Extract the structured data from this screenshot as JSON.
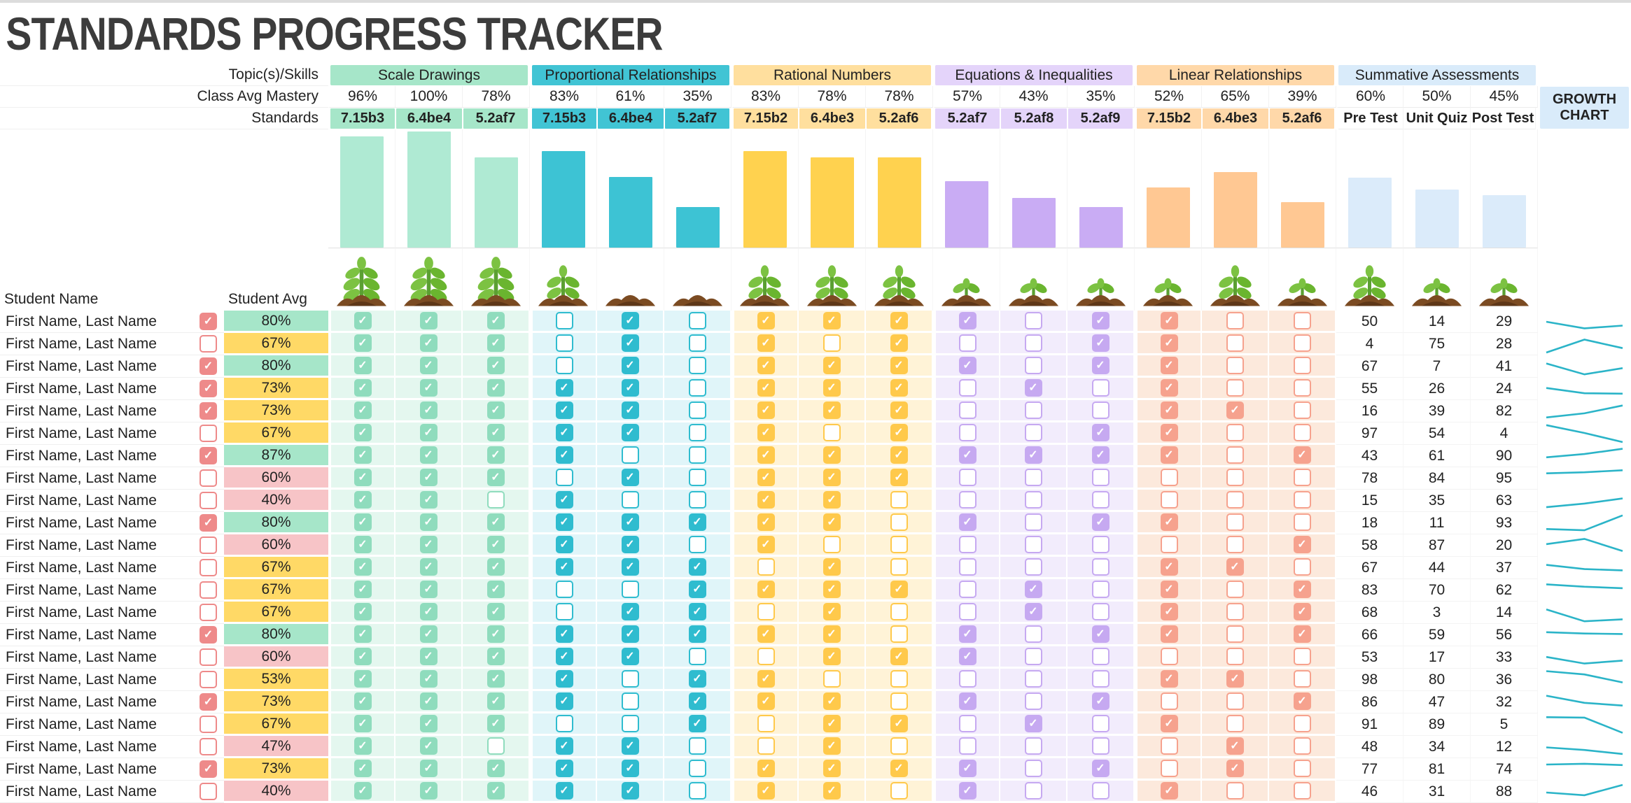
{
  "title": "STANDARDS PROGRESS TRACKER",
  "header": {
    "topics_label": "Topic(s)/Skills",
    "mastery_label": "Class Avg Mastery",
    "standards_label": "Standards",
    "growth_label": "GROWTH CHART"
  },
  "table": {
    "student_name_label": "Student Name",
    "student_avg_label": "Student Avg"
  },
  "palette": {
    "title_color": "#3C3C3C",
    "flag_check": "#EE8A8A",
    "sparkline": "#2BB4C8",
    "avg_green": "#A6E6C9",
    "avg_yellow": "#FFD966",
    "avg_pink": "#F7C4C7"
  },
  "groups": [
    {
      "label": "Scale Drawings",
      "header_bg": "#A6E6C9",
      "bar_color": "#AFEAD3",
      "check_color": "#8FDCBD",
      "tint": "#E4F7EF",
      "scores_group": false,
      "columns": [
        {
          "standard": "7.15b3",
          "mastery": 96,
          "plant": "large"
        },
        {
          "standard": "6.4be4",
          "mastery": 100,
          "plant": "large"
        },
        {
          "standard": "5.2af7",
          "mastery": 78,
          "plant": "large"
        }
      ]
    },
    {
      "label": "Proportional Relationships",
      "header_bg": "#41C4D4",
      "bar_color": "#3DC3D4",
      "check_color": "#2FBCCF",
      "tint": "#E0F5F9",
      "scores_group": false,
      "columns": [
        {
          "standard": "7.15b3",
          "mastery": 83,
          "plant": "medium"
        },
        {
          "standard": "6.4be4",
          "mastery": 61,
          "plant": "dirt"
        },
        {
          "standard": "5.2af7",
          "mastery": 35,
          "plant": "dirt"
        }
      ]
    },
    {
      "label": "Rational Numbers",
      "header_bg": "#FFDF9E",
      "bar_color": "#FFD24F",
      "check_color": "#FFC94B",
      "tint": "#FFF3D7",
      "scores_group": false,
      "columns": [
        {
          "standard": "7.15b2",
          "mastery": 83,
          "plant": "medium"
        },
        {
          "standard": "6.4be3",
          "mastery": 78,
          "plant": "medium"
        },
        {
          "standard": "5.2af6",
          "mastery": 78,
          "plant": "medium"
        }
      ]
    },
    {
      "label": "Equations & Inequalities",
      "header_bg": "#E4D4FA",
      "bar_color": "#C9ACF4",
      "check_color": "#C6A9F1",
      "tint": "#F2ECFC",
      "scores_group": false,
      "columns": [
        {
          "standard": "5.2af7",
          "mastery": 57,
          "plant": "sprout"
        },
        {
          "standard": "5.2af8",
          "mastery": 43,
          "plant": "sprout"
        },
        {
          "standard": "5.2af9",
          "mastery": 35,
          "plant": "sprout"
        }
      ]
    },
    {
      "label": "Linear Relationships",
      "header_bg": "#FFD8A9",
      "bar_color": "#FFC893",
      "check_color": "#F6A28E",
      "tint": "#FCE9DC",
      "scores_group": false,
      "columns": [
        {
          "standard": "7.15b2",
          "mastery": 52,
          "plant": "sprout"
        },
        {
          "standard": "6.4be3",
          "mastery": 65,
          "plant": "medium"
        },
        {
          "standard": "5.2af6",
          "mastery": 39,
          "plant": "sprout"
        }
      ]
    },
    {
      "label": "Summative Assessments",
      "header_bg": "#D9EBFA",
      "bar_color": "#DBEBFA",
      "check_color": "#9EC9EF",
      "tint": "#FFFFFF",
      "scores_group": true,
      "columns": [
        {
          "standard": "Pre Test",
          "mastery": 60,
          "plant": "medium"
        },
        {
          "standard": "Unit Quiz",
          "mastery": 50,
          "plant": "sprout"
        },
        {
          "standard": "Post Test",
          "mastery": 45,
          "plant": "sprout"
        }
      ]
    }
  ],
  "students": [
    {
      "name": "First Name, Last Name",
      "flag": true,
      "avg": "80%",
      "avg_color": "avg_green",
      "checks": [
        1,
        1,
        1,
        0,
        1,
        0,
        1,
        1,
        1,
        1,
        0,
        1,
        1,
        0,
        0
      ],
      "scores": [
        50,
        14,
        29
      ]
    },
    {
      "name": "First Name, Last Name",
      "flag": false,
      "avg": "67%",
      "avg_color": "avg_yellow",
      "checks": [
        1,
        1,
        1,
        0,
        1,
        0,
        1,
        0,
        1,
        0,
        0,
        1,
        1,
        0,
        0
      ],
      "scores": [
        4,
        75,
        28
      ]
    },
    {
      "name": "First Name, Last Name",
      "flag": true,
      "avg": "80%",
      "avg_color": "avg_green",
      "checks": [
        1,
        1,
        1,
        0,
        1,
        0,
        1,
        1,
        1,
        1,
        0,
        1,
        1,
        0,
        0
      ],
      "scores": [
        67,
        7,
        41
      ]
    },
    {
      "name": "First Name, Last Name",
      "flag": true,
      "avg": "73%",
      "avg_color": "avg_yellow",
      "checks": [
        1,
        1,
        1,
        1,
        1,
        0,
        1,
        1,
        1,
        0,
        1,
        0,
        1,
        0,
        0
      ],
      "scores": [
        55,
        26,
        24
      ]
    },
    {
      "name": "First Name, Last Name",
      "flag": true,
      "avg": "73%",
      "avg_color": "avg_yellow",
      "checks": [
        1,
        1,
        1,
        1,
        1,
        0,
        1,
        1,
        1,
        0,
        0,
        0,
        1,
        1,
        0
      ],
      "scores": [
        16,
        39,
        82
      ]
    },
    {
      "name": "First Name, Last Name",
      "flag": false,
      "avg": "67%",
      "avg_color": "avg_yellow",
      "checks": [
        1,
        1,
        1,
        1,
        1,
        0,
        1,
        0,
        1,
        0,
        0,
        1,
        1,
        0,
        0
      ],
      "scores": [
        97,
        54,
        4
      ]
    },
    {
      "name": "First Name, Last Name",
      "flag": true,
      "avg": "87%",
      "avg_color": "avg_green",
      "checks": [
        1,
        1,
        1,
        1,
        0,
        0,
        1,
        1,
        1,
        1,
        1,
        1,
        1,
        0,
        1
      ],
      "scores": [
        43,
        61,
        90
      ]
    },
    {
      "name": "First Name, Last Name",
      "flag": false,
      "avg": "60%",
      "avg_color": "avg_pink",
      "checks": [
        1,
        1,
        1,
        0,
        1,
        0,
        1,
        1,
        1,
        0,
        0,
        0,
        0,
        0,
        0
      ],
      "scores": [
        78,
        84,
        95
      ]
    },
    {
      "name": "First Name, Last Name",
      "flag": false,
      "avg": "40%",
      "avg_color": "avg_pink",
      "checks": [
        1,
        1,
        0,
        1,
        0,
        0,
        1,
        1,
        0,
        0,
        0,
        0,
        0,
        0,
        0
      ],
      "scores": [
        15,
        35,
        63
      ]
    },
    {
      "name": "First Name, Last Name",
      "flag": true,
      "avg": "80%",
      "avg_color": "avg_green",
      "checks": [
        1,
        1,
        1,
        1,
        1,
        1,
        1,
        1,
        0,
        1,
        0,
        1,
        1,
        0,
        0
      ],
      "scores": [
        18,
        11,
        93
      ]
    },
    {
      "name": "First Name, Last Name",
      "flag": false,
      "avg": "60%",
      "avg_color": "avg_pink",
      "checks": [
        1,
        1,
        1,
        1,
        1,
        0,
        1,
        0,
        0,
        0,
        0,
        0,
        0,
        0,
        1
      ],
      "scores": [
        58,
        87,
        20
      ]
    },
    {
      "name": "First Name, Last Name",
      "flag": false,
      "avg": "67%",
      "avg_color": "avg_yellow",
      "checks": [
        1,
        1,
        1,
        1,
        1,
        1,
        0,
        1,
        0,
        0,
        0,
        0,
        1,
        1,
        0
      ],
      "scores": [
        67,
        44,
        37
      ]
    },
    {
      "name": "First Name, Last Name",
      "flag": false,
      "avg": "67%",
      "avg_color": "avg_yellow",
      "checks": [
        1,
        1,
        1,
        0,
        0,
        1,
        1,
        1,
        1,
        0,
        1,
        0,
        1,
        0,
        1
      ],
      "scores": [
        83,
        70,
        62
      ]
    },
    {
      "name": "First Name, Last Name",
      "flag": false,
      "avg": "67%",
      "avg_color": "avg_yellow",
      "checks": [
        1,
        1,
        1,
        0,
        1,
        1,
        0,
        1,
        0,
        0,
        1,
        0,
        1,
        0,
        1
      ],
      "scores": [
        68,
        3,
        14
      ]
    },
    {
      "name": "First Name, Last Name",
      "flag": true,
      "avg": "80%",
      "avg_color": "avg_green",
      "checks": [
        1,
        1,
        1,
        1,
        1,
        1,
        1,
        1,
        0,
        1,
        0,
        1,
        1,
        0,
        1
      ],
      "scores": [
        66,
        59,
        56
      ]
    },
    {
      "name": "First Name, Last Name",
      "flag": false,
      "avg": "60%",
      "avg_color": "avg_pink",
      "checks": [
        1,
        1,
        1,
        1,
        1,
        0,
        0,
        1,
        1,
        1,
        0,
        0,
        0,
        0,
        0
      ],
      "scores": [
        53,
        17,
        33
      ]
    },
    {
      "name": "First Name, Last Name",
      "flag": false,
      "avg": "53%",
      "avg_color": "avg_yellow",
      "checks": [
        1,
        1,
        1,
        1,
        0,
        1,
        1,
        0,
        0,
        0,
        0,
        0,
        1,
        1,
        0
      ],
      "scores": [
        98,
        80,
        36
      ]
    },
    {
      "name": "First Name, Last Name",
      "flag": true,
      "avg": "73%",
      "avg_color": "avg_yellow",
      "checks": [
        1,
        1,
        1,
        1,
        0,
        1,
        1,
        1,
        0,
        1,
        0,
        1,
        0,
        0,
        1
      ],
      "scores": [
        86,
        47,
        32
      ]
    },
    {
      "name": "First Name, Last Name",
      "flag": false,
      "avg": "67%",
      "avg_color": "avg_yellow",
      "checks": [
        1,
        1,
        1,
        0,
        0,
        1,
        0,
        1,
        1,
        0,
        1,
        0,
        1,
        0,
        0
      ],
      "scores": [
        91,
        89,
        5
      ]
    },
    {
      "name": "First Name, Last Name",
      "flag": false,
      "avg": "47%",
      "avg_color": "avg_pink",
      "checks": [
        1,
        1,
        0,
        1,
        1,
        0,
        0,
        1,
        0,
        0,
        0,
        0,
        0,
        1,
        0
      ],
      "scores": [
        48,
        34,
        12
      ]
    },
    {
      "name": "First Name, Last Name",
      "flag": true,
      "avg": "73%",
      "avg_color": "avg_yellow",
      "checks": [
        1,
        1,
        1,
        1,
        1,
        0,
        1,
        1,
        1,
        1,
        0,
        1,
        0,
        1,
        0
      ],
      "scores": [
        77,
        81,
        74
      ]
    },
    {
      "name": "First Name, Last Name",
      "flag": false,
      "avg": "40%",
      "avg_color": "avg_pink",
      "checks": [
        1,
        1,
        1,
        1,
        1,
        0,
        1,
        1,
        0,
        1,
        0,
        0,
        1,
        0,
        0
      ],
      "scores": [
        46,
        31,
        88
      ]
    }
  ]
}
